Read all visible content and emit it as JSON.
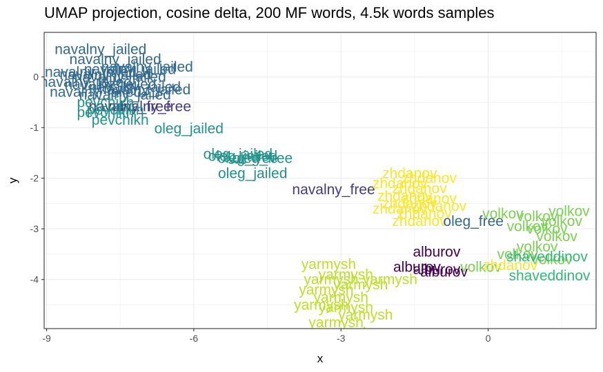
{
  "chart_data": {
    "type": "scatter",
    "title": "UMAP projection, cosine delta, 200 MF words, 4.5k words samples",
    "xlabel": "x",
    "ylabel": "y",
    "xlim": [
      -9.05,
      2.2
    ],
    "ylim": [
      -4.97,
      0.88
    ],
    "x_ticks": [
      -9,
      -6,
      -3,
      0
    ],
    "y_ticks": [
      0,
      -1,
      -2,
      -3,
      -4
    ],
    "x_tick_labels": [
      "-9",
      "-6",
      "-3",
      "0"
    ],
    "y_tick_labels": [
      "0",
      "-1",
      "-2",
      "-3",
      "-4"
    ],
    "grid": true,
    "legend": "none",
    "colors": {
      "navalny_jailed": "#31688e",
      "navalny_free": "#443a83",
      "pevchikh": "#21918c",
      "oleg_jailed": "#21918c",
      "oleg_free": "#21918c",
      "zhdanov": "#fde725",
      "volkov": "#7ad151",
      "alburov": "#440154",
      "yarmysh": "#bddf26",
      "shaveddinov": "#35b779",
      "oleg_free_late": "#31688e"
    },
    "points": [
      {
        "label": "navalny_jailed",
        "x": -7.9,
        "y": 0.55,
        "group": "navalny_jailed"
      },
      {
        "label": "navalny_jailed",
        "x": -7.6,
        "y": 0.35,
        "group": "navalny_jailed"
      },
      {
        "label": "navalny_jailed",
        "x": -7.3,
        "y": 0.15,
        "group": "navalny_jailed"
      },
      {
        "label": "navalny_jailed",
        "x": -8.1,
        "y": 0.1,
        "group": "navalny_jailed"
      },
      {
        "label": "navalny_jailed",
        "x": -7.8,
        "y": 0.05,
        "group": "navalny_jailed"
      },
      {
        "label": "navalny_jailed",
        "x": -7.5,
        "y": 0.0,
        "group": "navalny_jailed"
      },
      {
        "label": "navalny_jailed",
        "x": -8.2,
        "y": -0.1,
        "group": "navalny_jailed"
      },
      {
        "label": "navalny_jailed",
        "x": -7.7,
        "y": -0.15,
        "group": "navalny_jailed"
      },
      {
        "label": "navalny_jailed",
        "x": -7.2,
        "y": -0.2,
        "group": "navalny_jailed"
      },
      {
        "label": "navalny_jailed",
        "x": -7.0,
        "y": -0.25,
        "group": "navalny_jailed"
      },
      {
        "label": "navalny_jailed",
        "x": -8.0,
        "y": -0.3,
        "group": "navalny_jailed"
      },
      {
        "label": "navalny_jailed",
        "x": -6.95,
        "y": 0.2,
        "group": "navalny_jailed"
      },
      {
        "label": "navalny_jailed",
        "x": -7.4,
        "y": -0.35,
        "group": "navalny_jailed"
      },
      {
        "label": "navalny_free",
        "x": -7.3,
        "y": -0.58,
        "group": "navalny_free"
      },
      {
        "label": "navalny_free",
        "x": -6.9,
        "y": -0.58,
        "group": "navalny_free"
      },
      {
        "label": "pevchikh",
        "x": -7.8,
        "y": -0.5,
        "group": "pevchikh"
      },
      {
        "label": "pevchikh",
        "x": -7.6,
        "y": -0.65,
        "group": "pevchikh"
      },
      {
        "label": "pevchikh",
        "x": -7.8,
        "y": -0.7,
        "group": "pevchikh"
      },
      {
        "label": "pevchikh",
        "x": -7.5,
        "y": -0.85,
        "group": "pevchikh"
      },
      {
        "label": "oleg_jailed",
        "x": -6.1,
        "y": -1.02,
        "group": "oleg_jailed"
      },
      {
        "label": "oleg_jailed",
        "x": -5.1,
        "y": -1.52,
        "group": "oleg_jailed"
      },
      {
        "label": "oleg_jailed",
        "x": -5.0,
        "y": -1.56,
        "group": "oleg_jailed"
      },
      {
        "label": "oleg_jailed",
        "x": -4.8,
        "y": -1.9,
        "group": "oleg_jailed"
      },
      {
        "label": "oleg_free",
        "x": -4.9,
        "y": -1.6,
        "group": "oleg_free"
      },
      {
        "label": "oleg_free",
        "x": -4.6,
        "y": -1.6,
        "group": "oleg_free"
      },
      {
        "label": "navalny_free",
        "x": -3.15,
        "y": -2.22,
        "group": "navalny_free"
      },
      {
        "label": "zhdanov",
        "x": -1.6,
        "y": -1.9,
        "group": "zhdanov"
      },
      {
        "label": "zhdanov",
        "x": -1.2,
        "y": -2.0,
        "group": "zhdanov"
      },
      {
        "label": "zhdanov",
        "x": -1.8,
        "y": -2.1,
        "group": "zhdanov"
      },
      {
        "label": "zhdanov",
        "x": -1.4,
        "y": -2.2,
        "group": "zhdanov"
      },
      {
        "label": "zhdanov",
        "x": -1.7,
        "y": -2.35,
        "group": "zhdanov"
      },
      {
        "label": "zhdanov",
        "x": -1.2,
        "y": -2.4,
        "group": "zhdanov"
      },
      {
        "label": "zhdanov",
        "x": -1.6,
        "y": -2.5,
        "group": "zhdanov"
      },
      {
        "label": "zhdanov",
        "x": -1.0,
        "y": -2.55,
        "group": "zhdanov"
      },
      {
        "label": "zhdanov",
        "x": -1.8,
        "y": -2.6,
        "group": "zhdanov"
      },
      {
        "label": "zhdanov",
        "x": -1.3,
        "y": -2.7,
        "group": "zhdanov"
      },
      {
        "label": "zhdanov",
        "x": -1.4,
        "y": -2.85,
        "group": "zhdanov"
      },
      {
        "label": "oleg_free",
        "x": -0.3,
        "y": -2.85,
        "group": "oleg_free_late"
      },
      {
        "label": "volkov",
        "x": 1.65,
        "y": -2.65,
        "group": "volkov"
      },
      {
        "label": "volkov",
        "x": 0.3,
        "y": -2.7,
        "group": "volkov"
      },
      {
        "label": "volkov",
        "x": 1.0,
        "y": -2.75,
        "group": "volkov"
      },
      {
        "label": "volkov",
        "x": 1.5,
        "y": -2.85,
        "group": "volkov"
      },
      {
        "label": "volkov",
        "x": 0.8,
        "y": -2.95,
        "group": "volkov"
      },
      {
        "label": "volkov",
        "x": 1.2,
        "y": -3.0,
        "group": "volkov"
      },
      {
        "label": "volkov",
        "x": 1.4,
        "y": -3.15,
        "group": "volkov"
      },
      {
        "label": "volkov",
        "x": 1.0,
        "y": -3.35,
        "group": "volkov"
      },
      {
        "label": "volkov",
        "x": 0.6,
        "y": -3.5,
        "group": "volkov"
      },
      {
        "label": "volkov",
        "x": 1.3,
        "y": -3.6,
        "group": "volkov"
      },
      {
        "label": "volkov",
        "x": -0.15,
        "y": -3.75,
        "group": "volkov"
      },
      {
        "label": "zhdanov",
        "x": 0.45,
        "y": -3.72,
        "group": "zhdanov"
      },
      {
        "label": "shaveddinov",
        "x": 1.2,
        "y": -3.55,
        "group": "shaveddinov"
      },
      {
        "label": "shaveddinov",
        "x": 1.25,
        "y": -3.92,
        "group": "shaveddinov"
      },
      {
        "label": "alburov",
        "x": -1.05,
        "y": -3.45,
        "group": "alburov"
      },
      {
        "label": "alburov",
        "x": -1.45,
        "y": -3.75,
        "group": "alburov"
      },
      {
        "label": "alburov",
        "x": -1.05,
        "y": -3.8,
        "group": "alburov"
      },
      {
        "label": "alburov",
        "x": -0.9,
        "y": -3.85,
        "group": "alburov"
      },
      {
        "label": "yarmysh",
        "x": -3.25,
        "y": -3.7,
        "group": "yarmysh"
      },
      {
        "label": "yarmysh",
        "x": -2.9,
        "y": -3.9,
        "group": "yarmysh"
      },
      {
        "label": "yarmysh",
        "x": -3.2,
        "y": -4.0,
        "group": "yarmysh"
      },
      {
        "label": "yarmysh",
        "x": -2.6,
        "y": -4.1,
        "group": "yarmysh"
      },
      {
        "label": "yarmysh",
        "x": -3.3,
        "y": -4.2,
        "group": "yarmysh"
      },
      {
        "label": "yarmysh",
        "x": -2.0,
        "y": -4.0,
        "group": "yarmysh"
      },
      {
        "label": "yarmysh",
        "x": -3.0,
        "y": -4.35,
        "group": "yarmysh"
      },
      {
        "label": "yarmysh",
        "x": -3.4,
        "y": -4.5,
        "group": "yarmysh"
      },
      {
        "label": "yarmysh",
        "x": -2.9,
        "y": -4.55,
        "group": "yarmysh"
      },
      {
        "label": "yarmysh",
        "x": -2.5,
        "y": -4.7,
        "group": "yarmysh"
      },
      {
        "label": "yarmysh",
        "x": -3.1,
        "y": -4.85,
        "group": "yarmysh"
      },
      {
        "label": "yarmysh",
        "x": -2.95,
        "y": -5.05,
        "group": "yarmysh"
      }
    ]
  }
}
